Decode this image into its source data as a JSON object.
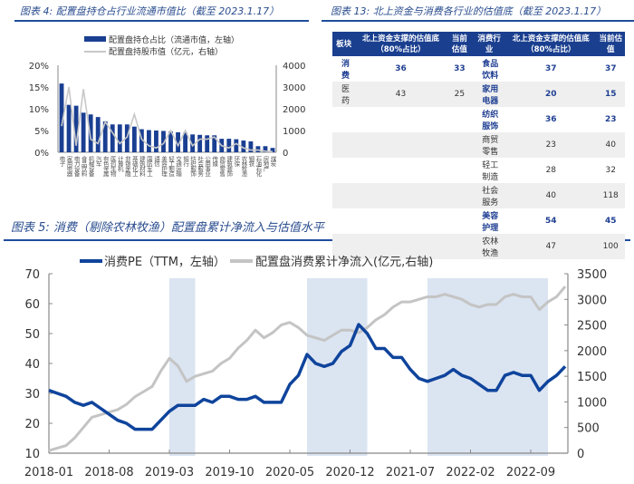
{
  "fig4": {
    "title": "图表 4:  配置盘持仓占行业流通市值比（截至 2023.1.17）"
  },
  "fig13": {
    "title": "图表 13:  北上资金与消费各行业的估值底（截至 2023.1.17）",
    "headers": [
      "板块",
      "北上资金支撑的估值底（80%占比）",
      "当前估值",
      "消费行业",
      "北上资金支撑的估值底（80%占比）",
      "当前估值"
    ],
    "rows": [
      [
        "消费",
        "36",
        "33",
        "食品饮料",
        "37",
        "37"
      ],
      [
        "医药",
        "43",
        "25",
        "家用电器",
        "20",
        "15"
      ],
      [
        "",
        "",
        "",
        "纺织服饰",
        "36",
        "23"
      ],
      [
        "",
        "",
        "",
        "商贸零售",
        "23",
        "40"
      ],
      [
        "",
        "",
        "",
        "轻工制造",
        "28",
        "32"
      ],
      [
        "",
        "",
        "",
        "社会服务",
        "40",
        "118"
      ],
      [
        "",
        "",
        "",
        "美容护理",
        "54",
        "45"
      ],
      [
        "",
        "",
        "",
        "农林牧渔",
        "47",
        "100"
      ]
    ],
    "bold_rows_left": [
      0
    ],
    "bold_rows_right": [
      0,
      1,
      2,
      6
    ]
  },
  "fig5": {
    "title": "图表 5:  消费（剔除农林牧渔）配置盘累计净流入与估值水平"
  },
  "chart_data": [
    {
      "type": "bar",
      "legend_placement": "top",
      "series": [
        {
          "name": "配置盘持仓占比（流通市值，左轴）",
          "type": "bar",
          "color": "#1a3f92",
          "values": [
            15.8,
            10.9,
            10.7,
            9.1,
            8.7,
            8.1,
            7.1,
            6.4,
            6.4,
            6.4,
            5.9,
            5.3,
            5.1,
            5.0,
            4.9,
            4.8,
            4.6,
            4.5,
            4.1,
            4.0,
            3.9,
            3.9,
            3.1,
            3.1,
            3.0,
            2.7,
            2.5,
            1.4,
            1.4,
            1.0
          ]
        },
        {
          "name": "配置盘持股市值（亿元，右轴）",
          "type": "line",
          "color": "#c8c8c8",
          "values": [
            1200,
            3000,
            300,
            2900,
            600,
            400,
            1400,
            900,
            400,
            700,
            1750,
            600,
            300,
            200,
            400,
            1000,
            300,
            1000,
            300,
            600,
            600,
            700,
            300,
            200,
            400,
            200,
            100,
            100,
            50,
            30
          ]
        }
      ],
      "categories": [
        "电子",
        "家用电器",
        "电力设备",
        "食品饮料",
        "机械设备",
        "汽车",
        "有色金属",
        "医药生物",
        "计算机",
        "非银金融",
        "基础化工",
        "建筑材料",
        "国防军工",
        "通信",
        "美容护理",
        "轻工制造",
        "交通运输",
        "银行",
        "纺织服饰",
        "社会服务",
        "公用事业",
        "传媒",
        "商贸零售",
        "建筑装饰",
        "环保",
        "农林牧渔",
        "钢铁",
        "石油石化",
        "房地产",
        "煤炭"
      ],
      "yticks_left": [
        "0%",
        "5%",
        "10%",
        "15%",
        "20%"
      ],
      "ylim_left": [
        0,
        20
      ],
      "yticks_right": [
        "0",
        "1000",
        "2000",
        "3000",
        "4000"
      ],
      "ylim_right": [
        0,
        4000
      ]
    },
    {
      "type": "line",
      "legend_placement": "top",
      "x": [
        "2018-01",
        "2018-02",
        "2018-03",
        "2018-04",
        "2018-05",
        "2018-06",
        "2018-07",
        "2018-08",
        "2018-09",
        "2018-10",
        "2018-11",
        "2018-12",
        "2019-01",
        "2019-02",
        "2019-03",
        "2019-04",
        "2019-05",
        "2019-06",
        "2019-07",
        "2019-08",
        "2019-09",
        "2019-10",
        "2019-11",
        "2019-12",
        "2020-01",
        "2020-02",
        "2020-03",
        "2020-04",
        "2020-05",
        "2020-06",
        "2020-07",
        "2020-08",
        "2020-09",
        "2020-10",
        "2020-11",
        "2020-12",
        "2021-01",
        "2021-02",
        "2021-03",
        "2021-04",
        "2021-05",
        "2021-06",
        "2021-07",
        "2021-08",
        "2021-09",
        "2021-10",
        "2021-11",
        "2021-12",
        "2022-01",
        "2022-02",
        "2022-03",
        "2022-04",
        "2022-05",
        "2022-06",
        "2022-07",
        "2022-08",
        "2022-09",
        "2022-10",
        "2022-11",
        "2022-12",
        "2023-01"
      ],
      "series": [
        {
          "name": "消费PE（TTM，左轴）",
          "color": "#0f449c",
          "values": [
            31,
            30,
            29,
            27,
            26,
            27,
            25,
            23,
            21,
            20,
            18,
            18,
            18,
            21,
            24,
            26,
            26,
            26,
            28,
            27,
            29,
            29,
            28,
            28,
            29,
            27,
            27,
            27,
            33,
            36,
            43,
            40,
            39,
            40,
            44,
            46,
            53,
            50,
            45,
            45,
            42,
            42,
            38,
            35,
            34,
            35,
            36,
            38,
            36,
            35,
            33,
            31,
            31,
            36,
            37,
            36,
            36,
            31,
            34,
            36,
            39
          ]
        },
        {
          "name": "配置盘消费累计净流入(亿元,右轴)",
          "color": "#c4c4c4",
          "values": [
            50,
            100,
            150,
            300,
            500,
            700,
            750,
            800,
            850,
            950,
            1100,
            1200,
            1300,
            1600,
            1850,
            1700,
            1400,
            1500,
            1550,
            1600,
            1750,
            1850,
            2050,
            2200,
            2400,
            2250,
            2350,
            2500,
            2550,
            2450,
            2300,
            2250,
            2200,
            2300,
            2400,
            2400,
            2350,
            2450,
            2600,
            2700,
            2850,
            2950,
            2950,
            3000,
            3050,
            3050,
            3100,
            3050,
            3000,
            2900,
            2850,
            2900,
            2900,
            3050,
            3100,
            3050,
            3050,
            2800,
            2950,
            3050,
            3250
          ]
        }
      ],
      "shaded_periods": [
        [
          "2019-03",
          "2019-06"
        ],
        [
          "2020-07",
          "2021-02"
        ],
        [
          "2021-09",
          "2022-11"
        ]
      ],
      "xticks": [
        "2018-01",
        "2018-08",
        "2019-03",
        "2019-10",
        "2020-05",
        "2020-12",
        "2021-07",
        "2022-02",
        "2022-09"
      ],
      "yticks_left": [
        "10",
        "20",
        "30",
        "40",
        "50",
        "60",
        "70"
      ],
      "ylim_left": [
        10,
        70
      ],
      "yticks_right": [
        "0",
        "500",
        "1000",
        "1500",
        "2000",
        "2500",
        "3000",
        "3500"
      ],
      "ylim_right": [
        0,
        3500
      ]
    }
  ]
}
